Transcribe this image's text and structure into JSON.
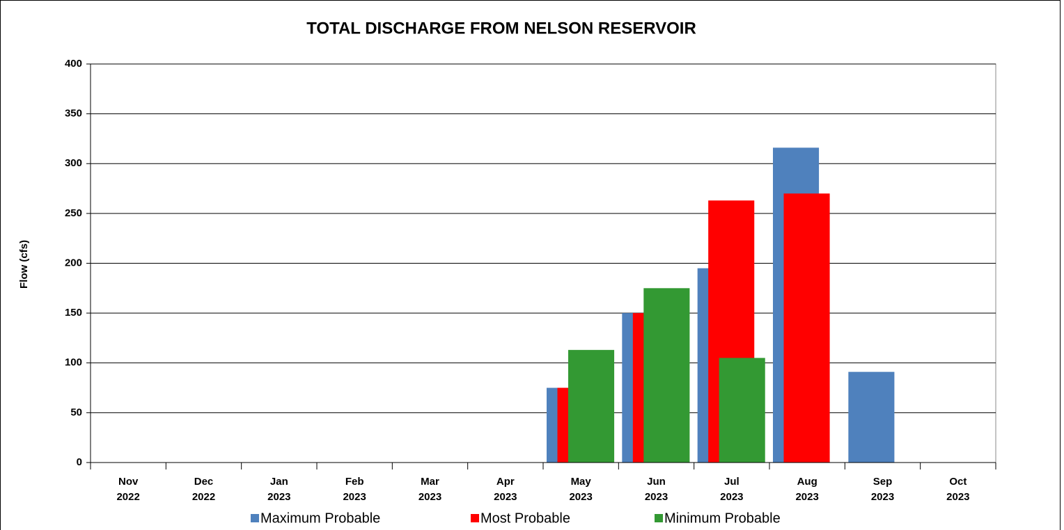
{
  "chart_data": {
    "type": "bar",
    "title": "TOTAL DISCHARGE FROM NELSON RESERVOIR",
    "y_label": "Flow (cfs)",
    "categories": [
      "Nov 2022",
      "Dec 2022",
      "Jan 2023",
      "Feb 2023",
      "Mar 2023",
      "Apr 2023",
      "May 2023",
      "Jun 2023",
      "Jul 2023",
      "Aug 2023",
      "Sep 2023",
      "Oct 2023"
    ],
    "series": [
      {
        "name": "Maximum Probable",
        "color": "#4f81bd",
        "values": [
          0,
          0,
          0,
          0,
          0,
          0,
          75,
          150,
          195,
          316,
          91,
          0
        ]
      },
      {
        "name": "Most Probable",
        "color": "#ff0000",
        "values": [
          0,
          0,
          0,
          0,
          0,
          0,
          75,
          150,
          263,
          270,
          0,
          0
        ]
      },
      {
        "name": "Minimum Probable",
        "color": "#339933",
        "values": [
          0,
          0,
          0,
          0,
          0,
          0,
          113,
          175,
          105,
          0,
          0,
          0
        ]
      }
    ],
    "ylim": [
      0,
      400
    ],
    "yticks": [
      0,
      50,
      100,
      150,
      200,
      250,
      300,
      350,
      400
    ],
    "grid": true,
    "legend": "bottom"
  }
}
